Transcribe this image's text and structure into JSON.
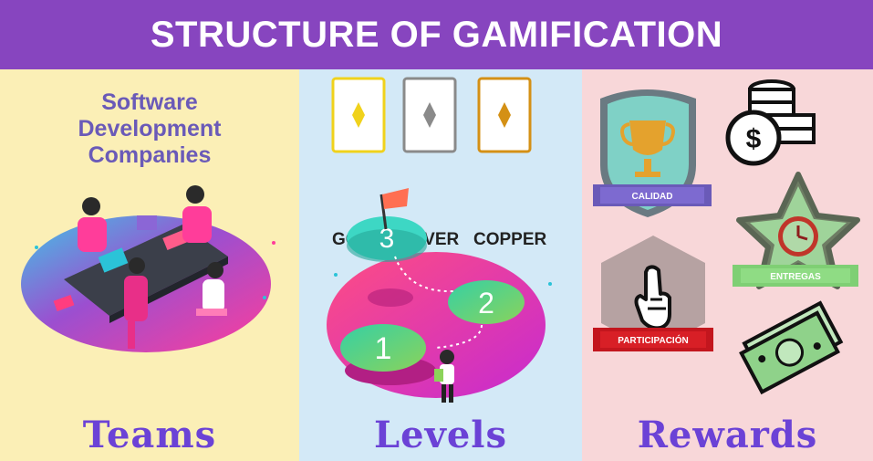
{
  "title": "STRUCTURE OF GAMIFICATION",
  "teams": {
    "subtitle_lines": [
      "Software",
      "Development",
      "Companies"
    ],
    "footer": "Teams"
  },
  "levels": {
    "cards": [
      {
        "label": "GOLD",
        "color": "#f0d21c"
      },
      {
        "label": "SILVER",
        "color": "#8a8a8a"
      },
      {
        "label": "COPPER",
        "color": "#d49015"
      }
    ],
    "steps": [
      "1",
      "2",
      "3"
    ],
    "footer": "Levels"
  },
  "rewards": {
    "badges": [
      "CALIDAD",
      "ENTREGAS",
      "PARTICIPACIÓN"
    ],
    "footer": "Rewards"
  },
  "colors": {
    "header": "#8745bf",
    "teams_bg": "#fbefb6",
    "levels_bg": "#d3e9f7",
    "rewards_bg": "#f8d7d9",
    "footer_text": "#6b42d6",
    "subtitle_text": "#6a5ab8"
  },
  "icons": [
    "trophy-icon",
    "coins-icon",
    "clock-icon",
    "hand-icon",
    "money-icon",
    "flag-icon"
  ]
}
